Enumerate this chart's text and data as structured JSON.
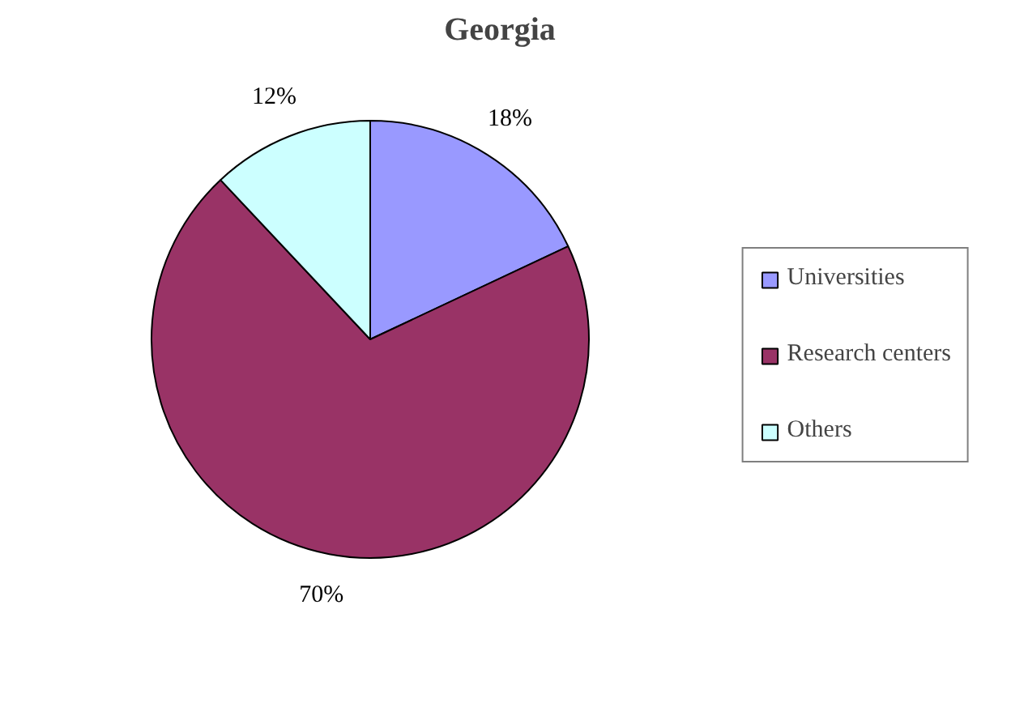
{
  "chart_data": {
    "type": "pie",
    "title": "Georgia",
    "categories": [
      "Universities",
      "Research centers",
      "Others"
    ],
    "values": [
      18,
      70,
      12
    ],
    "colors": [
      "#9999ff",
      "#993366",
      "#ccffff"
    ],
    "value_labels": [
      "18%",
      "70%",
      "12%"
    ],
    "legend": "right"
  }
}
